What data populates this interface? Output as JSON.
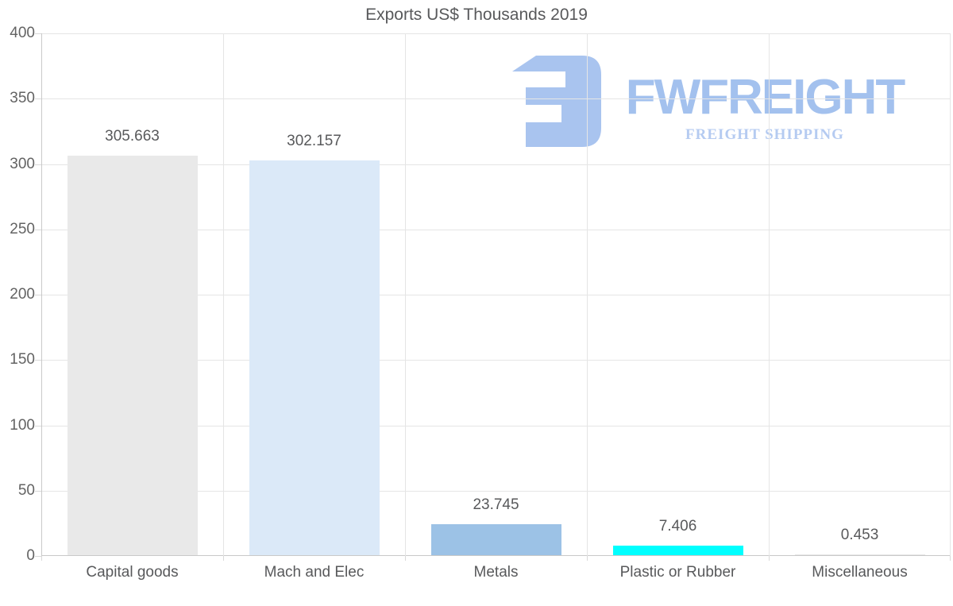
{
  "title": "Exports US$ Thousands 2019",
  "watermark": {
    "name": "FWFREIGHT",
    "subtitle": "FREIGHT SHIPPING",
    "icon_color": "#a9c4ef",
    "name_color": "#a3c1ee",
    "subtitle_color": "#b5cbf1"
  },
  "axis": {
    "y_tick_labels": [
      "0",
      "50",
      "100",
      "150",
      "200",
      "250",
      "300",
      "350",
      "400"
    ]
  },
  "chart_data": {
    "type": "bar",
    "title": "Exports US$ Thousands 2019",
    "categories": [
      "Capital goods",
      "Mach and Elec",
      "Metals",
      "Plastic or Rubber",
      "Miscellaneous"
    ],
    "values": [
      305.663,
      302.157,
      23.745,
      7.406,
      0.453
    ],
    "value_labels": [
      "305.663",
      "302.157",
      "23.745",
      "7.406",
      "0.453"
    ],
    "bar_colors": [
      "#e9e9e9",
      "#dbe9f8",
      "#9cc2e6",
      "#00ffff",
      "#e6e6e6"
    ],
    "xlabel": "",
    "ylabel": "",
    "ylim": [
      0,
      400
    ],
    "ytick_interval": 50,
    "grid": true,
    "legend_position": "none"
  },
  "theme": {
    "grid_color": "#e5e5e5",
    "axis_color": "#c9c9c9",
    "tick_color": "#d9d9d9",
    "text_color": "#58595b"
  }
}
